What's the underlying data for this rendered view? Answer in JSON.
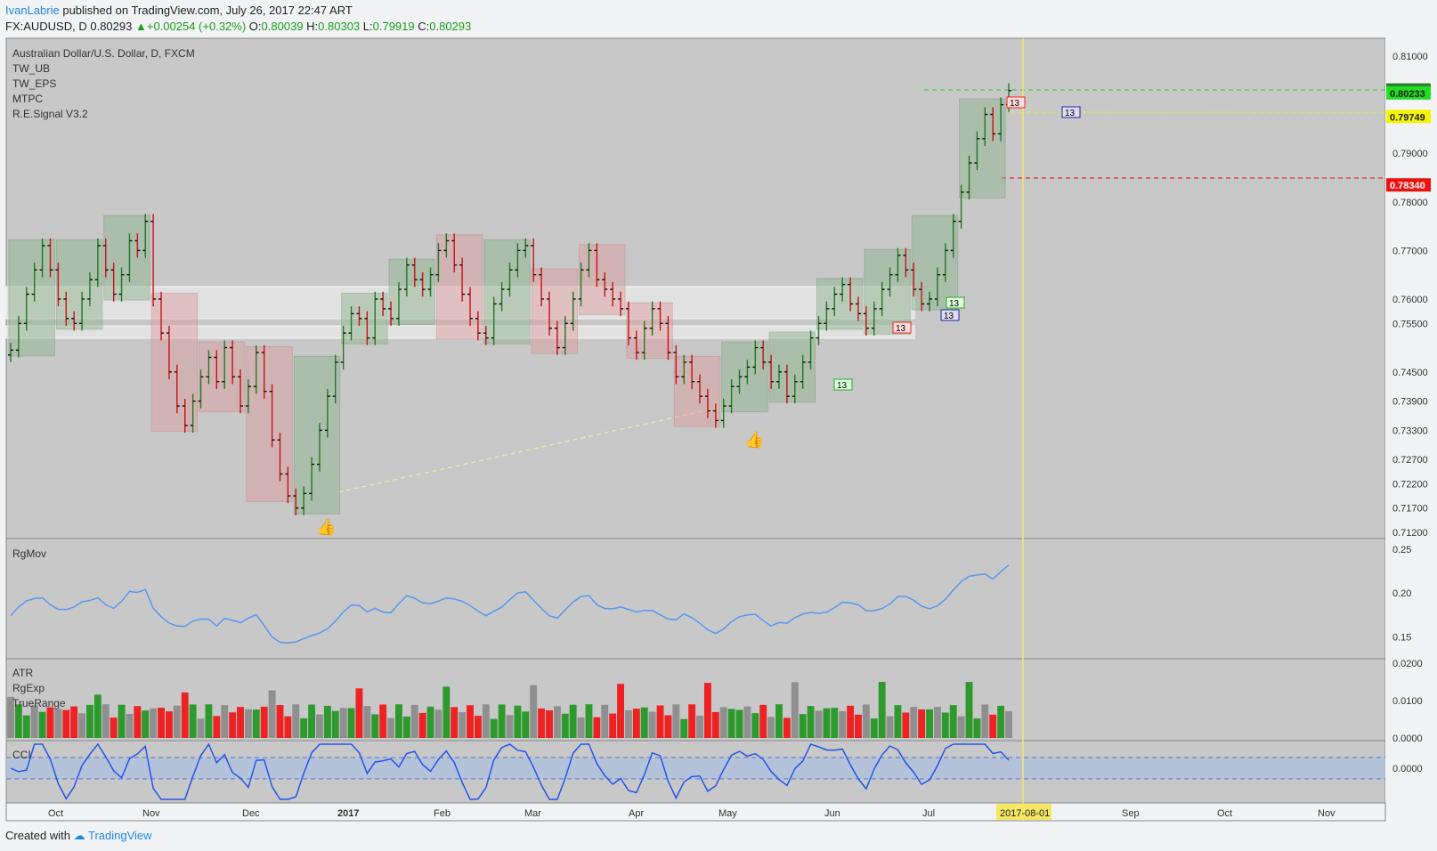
{
  "header": {
    "user": "IvanLabrie",
    "published": "published on TradingView.com, July 26, 2017 22:47 ART",
    "symbol": "FX:AUDUSD, D",
    "last": "0.80293",
    "change": "+0.00254 (+0.32%)",
    "o_label": "O:",
    "o": "0.80039",
    "h_label": "H:",
    "h": "0.80303",
    "l_label": "L:",
    "l": "0.79919",
    "c_label": "C:",
    "c": "0.80293"
  },
  "footer": {
    "created": "Created with",
    "brand": "TradingView"
  },
  "legend": [
    "Australian Dollar/U.S. Dollar, D, FXCM",
    "TW_UB",
    "TW_EPS",
    "MTPC",
    "R.E.Signal V3.2"
  ],
  "panes": {
    "rgmov": "RgMov",
    "atr": [
      "ATR",
      "RgExp",
      "TrueRange"
    ],
    "cci": "CCI"
  },
  "colors": {
    "up": "#1f7a1f",
    "down": "#cc1111",
    "line": "#5599ee",
    "bg": "#c8c8c8",
    "cursor": "#f5e663"
  },
  "xaxis": {
    "labels": [
      "Oct",
      "Nov",
      "Dec",
      "2017",
      "Feb",
      "Mar",
      "Apr",
      "May",
      "Jun",
      "Jul",
      "Sep",
      "Oct",
      "Nov"
    ],
    "cursor_label": "2017-08-01"
  },
  "chart_data": {
    "type": "candlestick",
    "price_axis": {
      "ticks": [
        "0.81000",
        "0.79000",
        "0.78000",
        "0.77000",
        "0.76000",
        "0.75500",
        "0.74500",
        "0.73900",
        "0.73300",
        "0.72700",
        "0.72200",
        "0.71700",
        "0.71200"
      ]
    },
    "price_labels": [
      {
        "value": "0.80293",
        "color": "#2e7d32"
      },
      {
        "value": "0.80233",
        "color": "#22dd22"
      },
      {
        "value": "0.79749",
        "color": "#f5f500"
      },
      {
        "value": "0.78340",
        "color": "#ee1111"
      }
    ],
    "close_path": [
      0.7495,
      0.755,
      0.761,
      0.766,
      0.771,
      0.766,
      0.76,
      0.756,
      0.755,
      0.76,
      0.764,
      0.771,
      0.766,
      0.761,
      0.765,
      0.772,
      0.77,
      0.776,
      0.76,
      0.753,
      0.745,
      0.738,
      0.734,
      0.739,
      0.744,
      0.748,
      0.743,
      0.75,
      0.744,
      0.738,
      0.742,
      0.749,
      0.741,
      0.731,
      0.724,
      0.7195,
      0.717,
      0.72,
      0.726,
      0.733,
      0.74,
      0.747,
      0.753,
      0.757,
      0.756,
      0.752,
      0.76,
      0.758,
      0.756,
      0.762,
      0.767,
      0.764,
      0.762,
      0.765,
      0.77,
      0.772,
      0.767,
      0.761,
      0.756,
      0.753,
      0.752,
      0.759,
      0.762,
      0.766,
      0.77,
      0.771,
      0.765,
      0.76,
      0.754,
      0.75,
      0.755,
      0.76,
      0.766,
      0.77,
      0.764,
      0.762,
      0.76,
      0.758,
      0.752,
      0.749,
      0.754,
      0.758,
      0.755,
      0.749,
      0.744,
      0.747,
      0.743,
      0.74,
      0.737,
      0.735,
      0.738,
      0.742,
      0.744,
      0.746,
      0.75,
      0.747,
      0.743,
      0.745,
      0.74,
      0.743,
      0.747,
      0.752,
      0.755,
      0.758,
      0.761,
      0.763,
      0.759,
      0.757,
      0.754,
      0.758,
      0.762,
      0.765,
      0.769,
      0.766,
      0.762,
      0.759,
      0.76,
      0.765,
      0.77,
      0.776,
      0.782,
      0.788,
      0.793,
      0.798,
      0.794,
      0.8,
      0.8029
    ],
    "rgmov": {
      "ticks": [
        "0.25",
        "0.20",
        "0.15"
      ],
      "range": [
        0.13,
        0.255
      ]
    },
    "atr": {
      "ticks": [
        "0.0200",
        "0.0100",
        "0.0000"
      ],
      "range": [
        0,
        0.02
      ]
    },
    "cci": {
      "ticks": [
        "0.0000"
      ]
    },
    "signals": {
      "count_label": "13"
    }
  }
}
